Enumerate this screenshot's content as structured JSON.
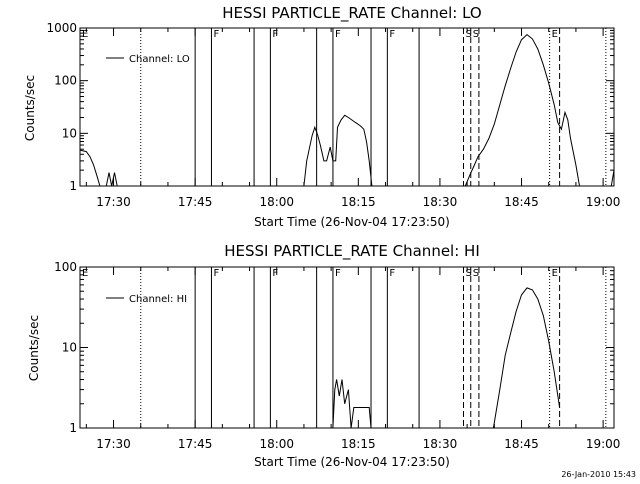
{
  "footer_timestamp": "26-Jan-2010 15:43",
  "chart_data": [
    {
      "type": "line",
      "title": "HESSI PARTICLE_RATE Channel: LO",
      "xlabel": "Start Time (26-Nov-04 17:23:50)",
      "ylabel": "Counts/sec",
      "yscale": "log",
      "ylim": [
        1,
        1000
      ],
      "xlim": [
        "17:23:50",
        "19:02:00"
      ],
      "y_tick_labels": [
        "1",
        "10",
        "100",
        "1000"
      ],
      "x_tick_labels": [
        "17:30",
        "17:45",
        "18:00",
        "18:15",
        "18:30",
        "18:45",
        "19:00"
      ],
      "legend": {
        "label": "Channel: LO",
        "position": "top-left"
      },
      "series": [
        {
          "name": "Channel: LO",
          "segments": [
            [
              [
                "17:23:50",
                4.8
              ],
              [
                "17:25:00",
                4.5
              ],
              [
                "17:25:40",
                3.6
              ],
              [
                "17:26:20",
                2.5
              ],
              [
                "17:27:00",
                1.5
              ],
              [
                "17:27:30",
                1.0
              ]
            ],
            [
              [
                "17:28:40",
                1.0
              ],
              [
                "17:29:10",
                1.8
              ],
              [
                "17:29:40",
                1.0
              ],
              [
                "17:30:10",
                1.8
              ],
              [
                "17:30:40",
                1.0
              ]
            ],
            [
              [
                "18:05:00",
                1.0
              ],
              [
                "18:05:30",
                3.0
              ],
              [
                "18:06:30",
                9.0
              ],
              [
                "18:07:00",
                13.0
              ],
              [
                "18:07:30",
                9.5
              ],
              [
                "18:08:00",
                6.0
              ],
              [
                "18:08:40",
                3.0
              ],
              [
                "18:09:10",
                3.0
              ],
              [
                "18:09:50",
                5.5
              ],
              [
                "18:10:20",
                3.0
              ],
              [
                "18:10:50",
                3.0
              ],
              [
                "18:11:10",
                13.0
              ],
              [
                "18:11:50",
                18.0
              ],
              [
                "18:12:30",
                22.0
              ],
              [
                "18:13:10",
                20.0
              ],
              [
                "18:14:30",
                16.0
              ],
              [
                "18:15:20",
                14.0
              ],
              [
                "18:16:00",
                12.0
              ],
              [
                "18:16:30",
                7.0
              ],
              [
                "18:17:00",
                3.0
              ],
              [
                "18:17:30",
                1.0
              ]
            ],
            [
              [
                "18:34:40",
                1.0
              ],
              [
                "18:35:30",
                1.6
              ],
              [
                "18:36:20",
                2.5
              ],
              [
                "18:37:00",
                3.6
              ],
              [
                "18:38:00",
                5.0
              ],
              [
                "18:39:00",
                8.0
              ],
              [
                "18:40:00",
                15.0
              ],
              [
                "18:41:00",
                35.0
              ],
              [
                "18:42:00",
                80.0
              ],
              [
                "18:43:00",
                170.0
              ],
              [
                "18:44:00",
                350.0
              ],
              [
                "18:45:00",
                600.0
              ],
              [
                "18:46:00",
                750.0
              ],
              [
                "18:47:00",
                620.0
              ],
              [
                "18:48:00",
                400.0
              ],
              [
                "18:49:00",
                200.0
              ],
              [
                "18:50:00",
                90.0
              ],
              [
                "18:51:00",
                35.0
              ],
              [
                "18:51:40",
                16.0
              ],
              [
                "18:52:20",
                12.0
              ],
              [
                "18:53:00",
                25.0
              ],
              [
                "18:53:30",
                18.0
              ],
              [
                "18:54:00",
                8.0
              ],
              [
                "18:55:00",
                2.5
              ],
              [
                "18:55:40",
                1.0
              ]
            ],
            [
              [
                "19:01:30",
                1.0
              ],
              [
                "19:02:00",
                2.0
              ]
            ]
          ]
        }
      ],
      "markers": [
        {
          "time": "17:23:50",
          "label": "E",
          "style": "solid"
        },
        {
          "time": "17:45:00",
          "label": "",
          "style": "solid"
        },
        {
          "time": "17:48:00",
          "label": "F",
          "style": "solid"
        },
        {
          "time": "17:55:50",
          "label": "",
          "style": "solid"
        },
        {
          "time": "17:58:50",
          "label": "F",
          "style": "solid"
        },
        {
          "time": "18:07:20",
          "label": "",
          "style": "solid"
        },
        {
          "time": "18:10:20",
          "label": "F",
          "style": "solid"
        },
        {
          "time": "18:17:20",
          "label": "",
          "style": "solid"
        },
        {
          "time": "18:20:20",
          "label": "F",
          "style": "solid"
        },
        {
          "time": "18:26:10",
          "label": "",
          "style": "solid"
        },
        {
          "time": "18:34:20",
          "label": "S",
          "style": "dashed"
        },
        {
          "time": "18:35:40",
          "label": "S",
          "style": "dashed"
        },
        {
          "time": "18:37:10",
          "label": "",
          "style": "dashed"
        },
        {
          "time": "18:50:10",
          "label": "E",
          "style": "dotted"
        },
        {
          "time": "18:52:00",
          "label": "",
          "style": "dashed"
        },
        {
          "time": "17:35:00",
          "label": "",
          "style": "dotted"
        },
        {
          "time": "19:00:30",
          "label": "",
          "style": "dotted"
        }
      ]
    },
    {
      "type": "line",
      "title": "HESSI PARTICLE_RATE Channel: HI",
      "xlabel": "Start Time (26-Nov-04 17:23:50)",
      "ylabel": "Counts/sec",
      "yscale": "log",
      "ylim": [
        1,
        100
      ],
      "xlim": [
        "17:23:50",
        "19:02:00"
      ],
      "y_tick_labels": [
        "1",
        "10",
        "100"
      ],
      "x_tick_labels": [
        "17:30",
        "17:45",
        "18:00",
        "18:15",
        "18:30",
        "18:45",
        "19:00"
      ],
      "legend": {
        "label": "Channel: HI",
        "position": "top-left"
      },
      "series": [
        {
          "name": "Channel: HI",
          "segments": [
            [
              [
                "18:10:20",
                1.0
              ],
              [
                "18:10:40",
                3.0
              ],
              [
                "18:11:00",
                4.0
              ],
              [
                "18:11:30",
                2.5
              ],
              [
                "18:12:00",
                4.0
              ],
              [
                "18:12:30",
                2.0
              ],
              [
                "18:13:10",
                3.0
              ],
              [
                "18:13:40",
                1.0
              ],
              [
                "18:14:10",
                1.8
              ],
              [
                "18:17:00",
                1.8
              ],
              [
                "18:17:20",
                1.0
              ]
            ],
            [
              [
                "18:39:50",
                1.0
              ],
              [
                "18:41:00",
                3.0
              ],
              [
                "18:42:00",
                8.0
              ],
              [
                "18:43:00",
                15.0
              ],
              [
                "18:44:00",
                28.0
              ],
              [
                "18:45:00",
                45.0
              ],
              [
                "18:46:00",
                55.0
              ],
              [
                "18:47:00",
                52.0
              ],
              [
                "18:48:00",
                40.0
              ],
              [
                "18:49:00",
                25.0
              ],
              [
                "18:50:00",
                12.0
              ],
              [
                "18:51:00",
                5.0
              ],
              [
                "18:52:00",
                1.8
              ]
            ]
          ]
        }
      ],
      "markers": [
        {
          "time": "17:23:50",
          "label": "E",
          "style": "solid"
        },
        {
          "time": "17:45:00",
          "label": "",
          "style": "solid"
        },
        {
          "time": "17:48:00",
          "label": "F",
          "style": "solid"
        },
        {
          "time": "17:55:50",
          "label": "",
          "style": "solid"
        },
        {
          "time": "17:58:50",
          "label": "F",
          "style": "solid"
        },
        {
          "time": "18:07:20",
          "label": "",
          "style": "solid"
        },
        {
          "time": "18:10:20",
          "label": "F",
          "style": "solid"
        },
        {
          "time": "18:17:20",
          "label": "",
          "style": "solid"
        },
        {
          "time": "18:20:20",
          "label": "F",
          "style": "solid"
        },
        {
          "time": "18:26:10",
          "label": "",
          "style": "solid"
        },
        {
          "time": "18:34:20",
          "label": "S",
          "style": "dashed"
        },
        {
          "time": "18:35:40",
          "label": "S",
          "style": "dashed"
        },
        {
          "time": "18:37:10",
          "label": "",
          "style": "dashed"
        },
        {
          "time": "18:50:10",
          "label": "E",
          "style": "dotted"
        },
        {
          "time": "18:52:00",
          "label": "",
          "style": "dashed"
        },
        {
          "time": "17:35:00",
          "label": "",
          "style": "dotted"
        },
        {
          "time": "19:00:30",
          "label": "",
          "style": "dotted"
        }
      ]
    }
  ]
}
